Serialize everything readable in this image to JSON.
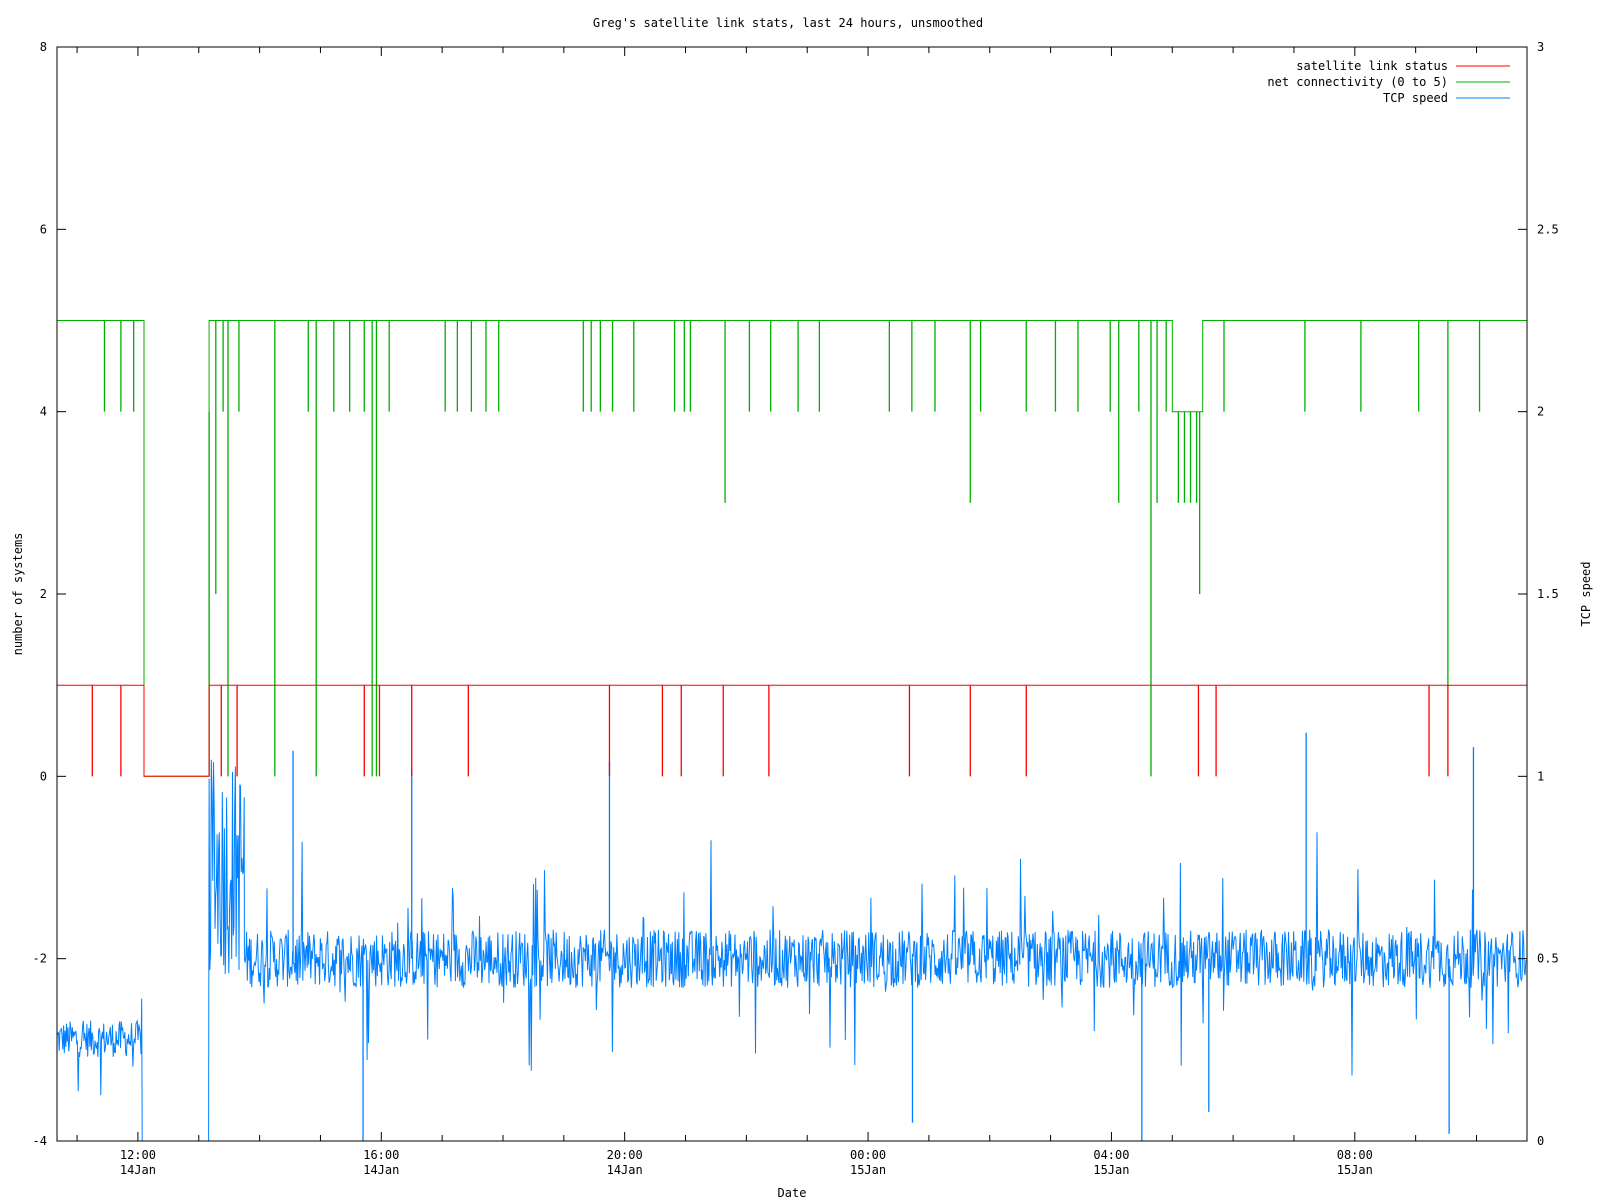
{
  "chart_data": {
    "type": "line",
    "title": "Greg's satellite link stats, last 24 hours, unsmoothed",
    "xlabel": "Date",
    "ylabel": "number of systems",
    "y2label": "TCP speed",
    "ylim": [
      -4,
      8
    ],
    "y2lim": [
      0,
      3
    ],
    "xlim": [
      10.67,
      34.83
    ],
    "y_ticks": [
      -4,
      -2,
      0,
      2,
      4,
      6,
      8
    ],
    "y2_ticks": [
      0,
      0.5,
      1,
      1.5,
      2,
      2.5,
      3
    ],
    "x_ticks": [
      {
        "x": 12,
        "time": "12:00",
        "date": "14Jan"
      },
      {
        "x": 16,
        "time": "16:00",
        "date": "14Jan"
      },
      {
        "x": 20,
        "time": "20:00",
        "date": "14Jan"
      },
      {
        "x": 24,
        "time": "00:00",
        "date": "15Jan"
      },
      {
        "x": 28,
        "time": "04:00",
        "date": "15Jan"
      },
      {
        "x": 32,
        "time": "08:00",
        "date": "15Jan"
      }
    ],
    "legend_position": "top-right",
    "grid": false,
    "series": [
      {
        "name": "satellite link status",
        "color": "#ff0000",
        "axis": "y",
        "baseline": 1,
        "segments": [
          [
            10.67,
            12.1,
            1
          ],
          [
            12.1,
            13.17,
            0
          ],
          [
            13.17,
            34.83,
            1
          ]
        ],
        "dips_to_0_at": [
          11.25,
          11.72,
          13.37,
          13.63,
          15.72,
          15.97,
          16.5,
          17.43,
          19.75,
          20.62,
          20.93,
          21.62,
          22.37,
          24.68,
          25.68,
          26.6,
          29.43,
          29.72,
          33.22,
          33.53
        ]
      },
      {
        "name": "net connectivity (0 to 5)",
        "color": "#00b000",
        "axis": "y",
        "baseline": 5,
        "segments": [
          [
            10.67,
            12.1,
            5
          ],
          [
            12.1,
            13.17,
            0
          ],
          [
            13.17,
            29.0,
            5
          ],
          [
            29.0,
            29.5,
            4
          ],
          [
            29.5,
            34.83,
            5
          ]
        ],
        "dips": [
          {
            "x": 11.45,
            "y": 4
          },
          {
            "x": 11.72,
            "y": 4
          },
          {
            "x": 11.93,
            "y": 4
          },
          {
            "x": 13.17,
            "y": 4
          },
          {
            "x": 13.28,
            "y": 2
          },
          {
            "x": 13.4,
            "y": 4
          },
          {
            "x": 13.48,
            "y": 0
          },
          {
            "x": 13.66,
            "y": 4
          },
          {
            "x": 14.25,
            "y": 0
          },
          {
            "x": 14.8,
            "y": 4
          },
          {
            "x": 14.93,
            "y": 0
          },
          {
            "x": 15.22,
            "y": 4
          },
          {
            "x": 15.48,
            "y": 4
          },
          {
            "x": 15.72,
            "y": 4
          },
          {
            "x": 15.85,
            "y": 0
          },
          {
            "x": 15.92,
            "y": 0
          },
          {
            "x": 16.13,
            "y": 4
          },
          {
            "x": 17.05,
            "y": 4
          },
          {
            "x": 17.25,
            "y": 4
          },
          {
            "x": 17.48,
            "y": 4
          },
          {
            "x": 17.72,
            "y": 4
          },
          {
            "x": 17.93,
            "y": 4
          },
          {
            "x": 19.32,
            "y": 4
          },
          {
            "x": 19.45,
            "y": 4
          },
          {
            "x": 19.6,
            "y": 4
          },
          {
            "x": 19.8,
            "y": 4
          },
          {
            "x": 20.15,
            "y": 4
          },
          {
            "x": 20.82,
            "y": 4
          },
          {
            "x": 20.98,
            "y": 4
          },
          {
            "x": 21.08,
            "y": 4
          },
          {
            "x": 21.65,
            "y": 3
          },
          {
            "x": 22.05,
            "y": 4
          },
          {
            "x": 22.4,
            "y": 4
          },
          {
            "x": 22.85,
            "y": 4
          },
          {
            "x": 23.2,
            "y": 4
          },
          {
            "x": 24.35,
            "y": 4
          },
          {
            "x": 24.72,
            "y": 4
          },
          {
            "x": 25.1,
            "y": 4
          },
          {
            "x": 25.68,
            "y": 3
          },
          {
            "x": 25.85,
            "y": 4
          },
          {
            "x": 26.6,
            "y": 4
          },
          {
            "x": 27.08,
            "y": 4
          },
          {
            "x": 27.45,
            "y": 4
          },
          {
            "x": 27.98,
            "y": 4
          },
          {
            "x": 28.12,
            "y": 3
          },
          {
            "x": 28.45,
            "y": 4
          },
          {
            "x": 28.65,
            "y": 0
          },
          {
            "x": 28.75,
            "y": 3
          },
          {
            "x": 28.9,
            "y": 4
          },
          {
            "x": 29.1,
            "y": 3
          },
          {
            "x": 29.2,
            "y": 3
          },
          {
            "x": 29.3,
            "y": 3
          },
          {
            "x": 29.4,
            "y": 3
          },
          {
            "x": 29.45,
            "y": 2
          },
          {
            "x": 29.85,
            "y": 4
          },
          {
            "x": 31.18,
            "y": 4
          },
          {
            "x": 32.1,
            "y": 4
          },
          {
            "x": 33.05,
            "y": 4
          },
          {
            "x": 33.53,
            "y": 1
          },
          {
            "x": 34.05,
            "y": 4
          }
        ]
      },
      {
        "name": "TCP speed",
        "color": "#0080ff",
        "axis": "y2",
        "segments": [
          {
            "x": [
              10.67,
              12.07
            ],
            "typical": 0.28,
            "spread": 0.05
          },
          {
            "x": [
              12.07,
              13.17
            ],
            "typical": 0.0,
            "spread": 0.0
          },
          {
            "x": [
              13.17,
              13.75
            ],
            "typical": 0.75,
            "spread": 0.3
          },
          {
            "x": [
              13.75,
              34.83
            ],
            "typical": 0.5,
            "spread": 0.08
          }
        ],
        "peaks": [
          {
            "x": 14.55,
            "y": 1.07
          },
          {
            "x": 16.5,
            "y": 1.02
          },
          {
            "x": 19.75,
            "y": 1.04
          },
          {
            "x": 31.2,
            "y": 1.12
          },
          {
            "x": 33.95,
            "y": 1.08
          }
        ],
        "troughs": [
          {
            "x": 15.7,
            "y": 0.0
          },
          {
            "x": 28.5,
            "y": 0.0
          },
          {
            "x": 29.6,
            "y": 0.08
          },
          {
            "x": 33.55,
            "y": 0.02
          },
          {
            "x": 24.73,
            "y": 0.05
          }
        ]
      }
    ]
  }
}
